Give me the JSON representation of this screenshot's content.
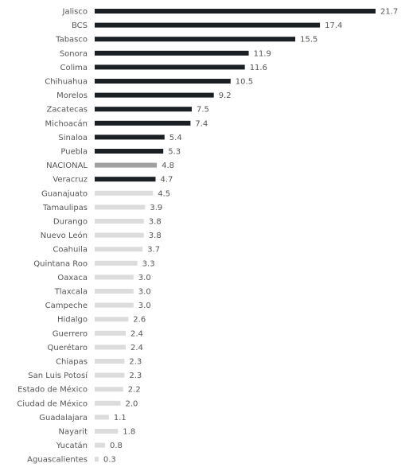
{
  "chart_data": {
    "type": "bar",
    "orientation": "horizontal",
    "categories": [
      "Jalisco",
      "BCS",
      "Tabasco",
      "Sonora",
      "Colima",
      "Chihuahua",
      "Morelos",
      "Zacatecas",
      "Michoacán",
      "Sinaloa",
      "Puebla",
      "NACIONAL",
      "Veracruz",
      "Guanajuato",
      "Tamaulipas",
      "Durango",
      "Nuevo León",
      "Coahuila",
      "Quintana Roo",
      "Oaxaca",
      "Tlaxcala",
      "Campeche",
      "Hidalgo",
      "Guerrero",
      "Querétaro",
      "Chiapas",
      "San Luis Potosí",
      "Estado de México",
      "Ciudad de México",
      "Guadalajara",
      "Nayarit",
      "Yucatán",
      "Aguascalientes"
    ],
    "values": [
      21.7,
      17.4,
      15.5,
      11.9,
      11.6,
      10.5,
      9.2,
      7.5,
      7.4,
      5.4,
      5.3,
      4.8,
      4.7,
      4.5,
      3.9,
      3.8,
      3.8,
      3.7,
      3.3,
      3.0,
      3.0,
      3.0,
      2.6,
      2.4,
      2.4,
      2.3,
      2.3,
      2.2,
      2.0,
      1.1,
      1.8,
      0.8,
      0.3
    ],
    "value_labels": [
      "21.7",
      "17.4",
      "15.5",
      "11.9",
      "11.6",
      "10.5",
      "9.2",
      "7.5",
      "7.4",
      "5.4",
      "5.3",
      "4.8",
      "4.7",
      "4.5",
      "3.9",
      "3.8",
      "3.8",
      "3.7",
      "3.3",
      "3.0",
      "3.0",
      "3.0",
      "2.6",
      "2.4",
      "2.4",
      "2.3",
      "2.3",
      "2.2",
      "2.0",
      "1.1",
      "1.8",
      "0.8",
      "0.3"
    ],
    "highlight_category": "NACIONAL",
    "xlim": [
      0,
      21.7
    ],
    "title": "",
    "xlabel": "",
    "ylabel": "",
    "grid": false,
    "colors": {
      "bar": "#1a1f24",
      "highlight": "#a0a0a0",
      "low_bar": "#dcdcdc",
      "label": "#555555"
    }
  }
}
